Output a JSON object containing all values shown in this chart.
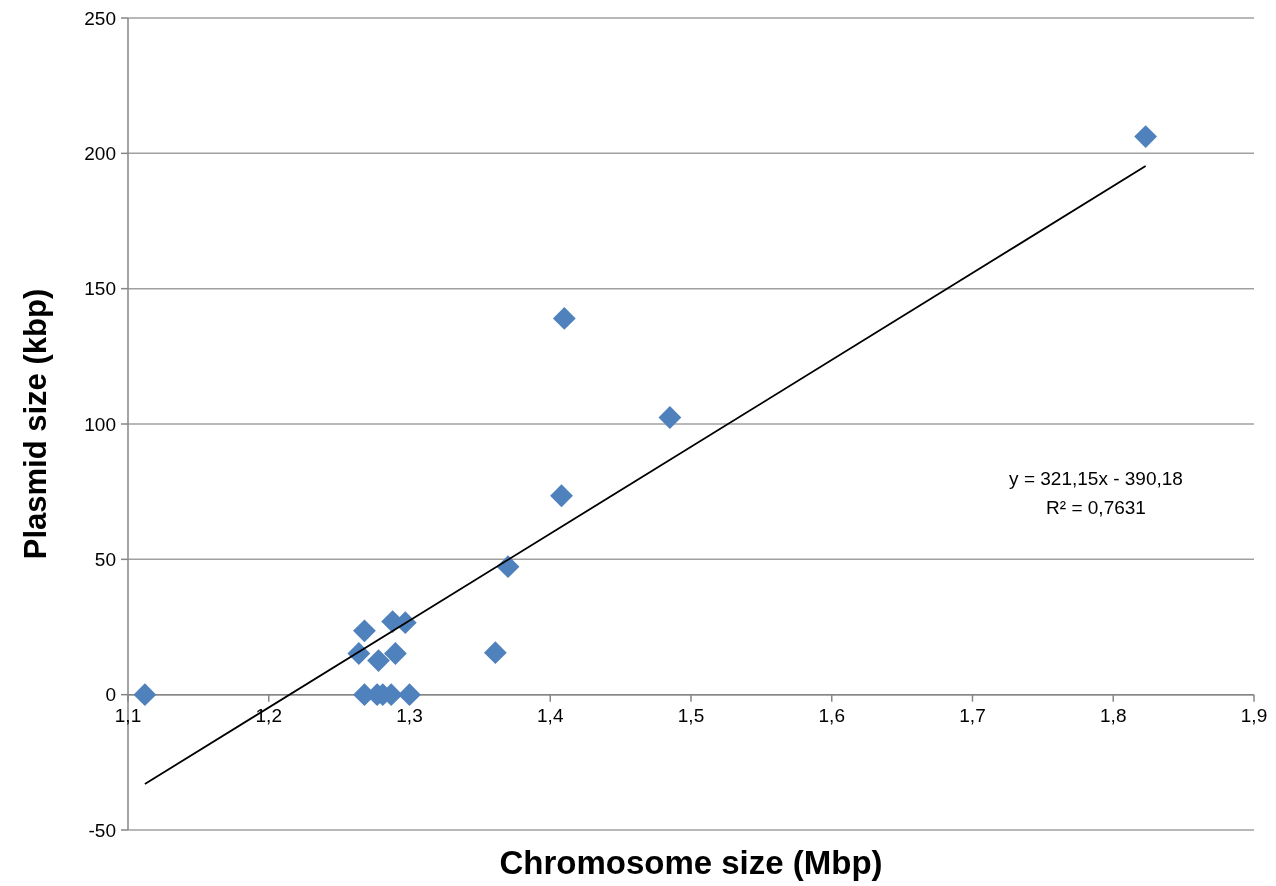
{
  "chart_data": {
    "type": "scatter",
    "xlabel": "Chromosome size (Mbp)",
    "ylabel": "Plasmid size (kbp)",
    "series": [
      {
        "color": "#4f81bd",
        "marker": "diamond",
        "x": [
          1.112,
          1.264,
          1.268,
          1.288,
          1.297,
          1.278,
          1.29,
          1.268,
          1.277,
          1.281,
          1.287,
          1.3,
          1.361,
          1.37,
          1.408,
          1.41,
          1.485,
          1.823
        ],
        "values": [
          0,
          15.2,
          23.6,
          27,
          26.6,
          12.6,
          15.2,
          0,
          0,
          0,
          0,
          0,
          15.5,
          47.3,
          73.5,
          139,
          102.4,
          206.2
        ]
      },
      {
        "type": "line",
        "color": "#000000",
        "x": [
          1.112,
          1.823
        ],
        "values": [
          -33,
          195.3
        ]
      }
    ],
    "xlim": [
      1.1,
      1.9
    ],
    "xticks": [
      {
        "value": 1.1,
        "label": "1,1"
      },
      {
        "value": 1.2,
        "label": "1,2"
      },
      {
        "value": 1.3,
        "label": "1,3"
      },
      {
        "value": 1.4,
        "label": "1,4"
      },
      {
        "value": 1.5,
        "label": "1,5"
      },
      {
        "value": 1.6,
        "label": "1,6"
      },
      {
        "value": 1.7,
        "label": "1,7"
      },
      {
        "value": 1.8,
        "label": "1,8"
      },
      {
        "value": 1.9,
        "label": "1,9"
      }
    ],
    "ylim": [
      -50,
      250
    ],
    "yticks": [
      -50,
      0,
      50,
      100,
      150,
      200,
      250
    ],
    "grid": "y",
    "annotations": [
      "y = 321,15x - 390,18",
      "R² = 0,7631"
    ]
  }
}
